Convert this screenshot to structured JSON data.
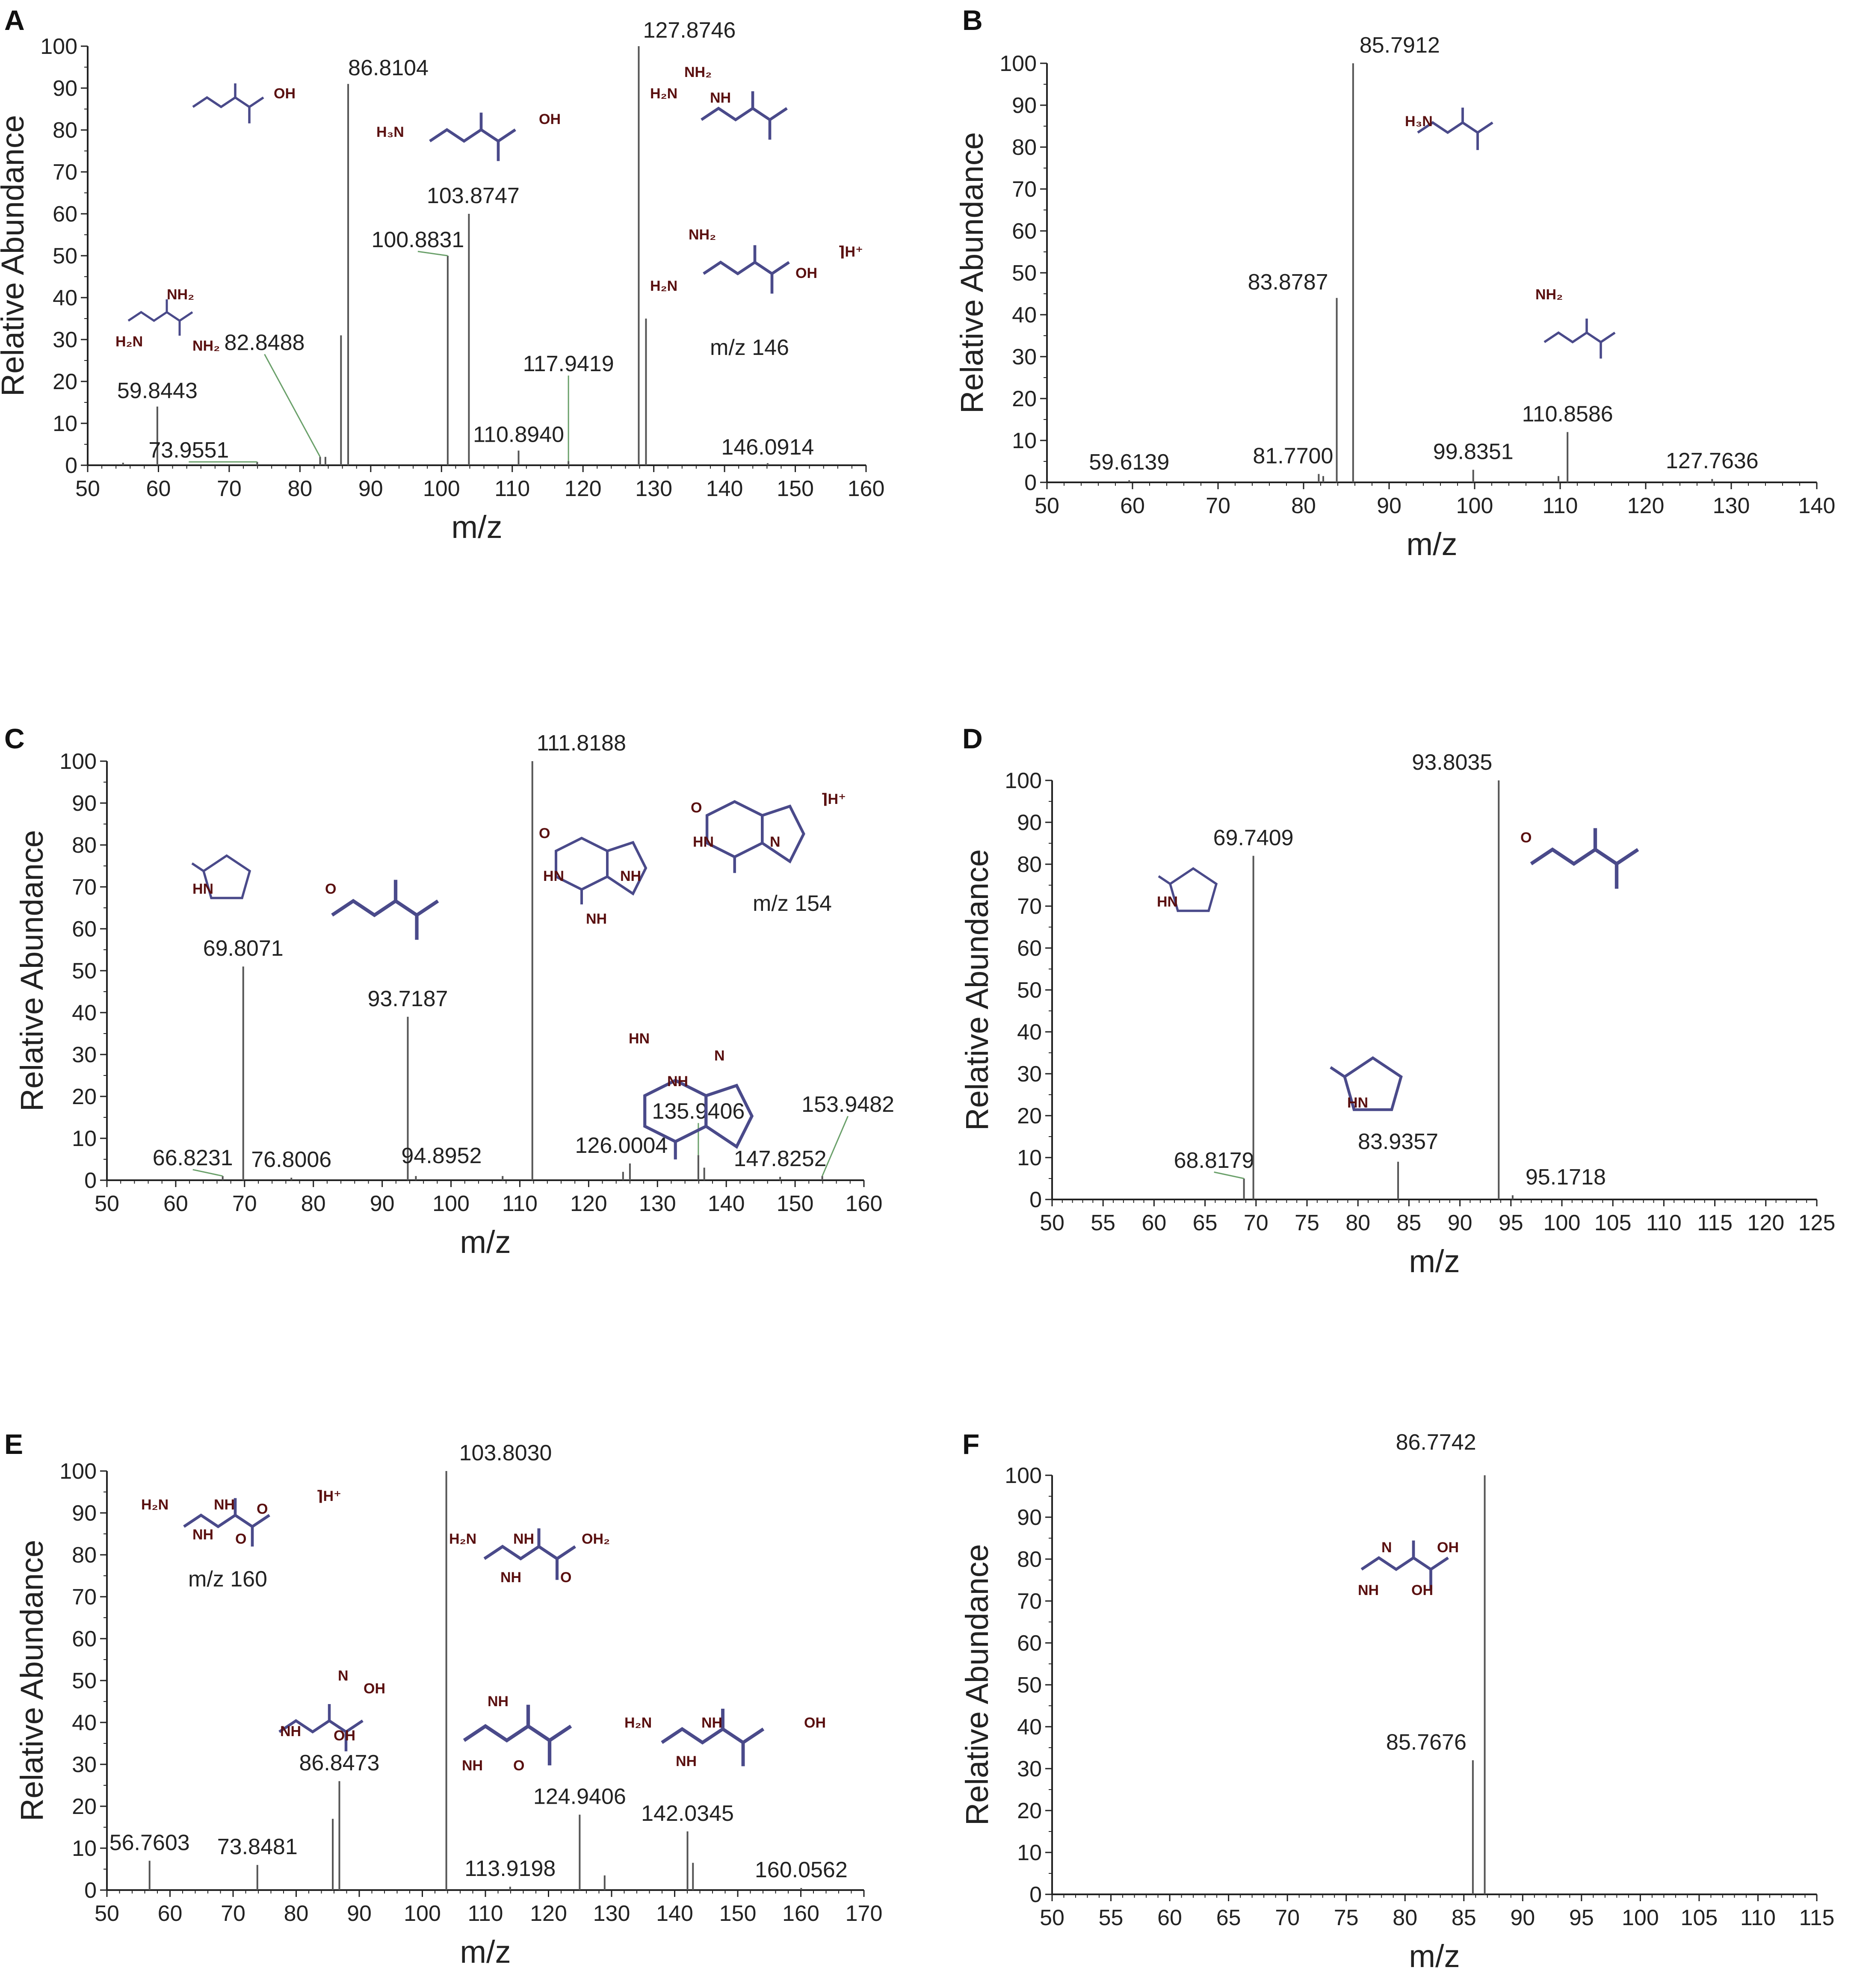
{
  "figure": {
    "ylabel": "Relative Abundance",
    "xlabel": "m/z",
    "accent_colors": {
      "axis": "#222222",
      "bar": "#555555",
      "structure_bond": "#4a4a8a",
      "structure_atom": "#5a1010",
      "leader": "#6aa06a"
    }
  },
  "chart_data": [
    {
      "panel": "A",
      "type": "bar",
      "xlabel": "m/z",
      "ylabel": "Relative Abundance",
      "xlim": [
        50,
        160
      ],
      "ylim": [
        0,
        100
      ],
      "xticks": [
        50,
        60,
        70,
        80,
        90,
        100,
        110,
        120,
        130,
        140,
        150,
        160
      ],
      "yticks": [
        0,
        10,
        20,
        30,
        40,
        50,
        60,
        70,
        80,
        90,
        100
      ],
      "peaks": [
        {
          "mz": 55.0,
          "intensity": 0.6
        },
        {
          "mz": 59.8443,
          "intensity": 14,
          "label": "59.8443"
        },
        {
          "mz": 73.9551,
          "intensity": 0.8,
          "label": "73.9551"
        },
        {
          "mz": 82.8488,
          "intensity": 2,
          "label": "82.8488"
        },
        {
          "mz": 83.6,
          "intensity": 2
        },
        {
          "mz": 85.8,
          "intensity": 31
        },
        {
          "mz": 86.8104,
          "intensity": 91,
          "label": "86.8104"
        },
        {
          "mz": 100.8831,
          "intensity": 50,
          "label": "100.8831"
        },
        {
          "mz": 103.8747,
          "intensity": 60,
          "label": "103.8747"
        },
        {
          "mz": 110.894,
          "intensity": 3.5,
          "label": "110.8940"
        },
        {
          "mz": 117.9419,
          "intensity": 1,
          "label": "117.9419"
        },
        {
          "mz": 127.8746,
          "intensity": 100,
          "label": "127.8746"
        },
        {
          "mz": 128.9,
          "intensity": 35
        },
        {
          "mz": 146.0914,
          "intensity": 0.5,
          "label": "146.0914"
        }
      ],
      "annotations": [
        "m/z 146"
      ]
    },
    {
      "panel": "B",
      "type": "bar",
      "xlabel": "m/z",
      "ylabel": "Relative Abundance",
      "xlim": [
        50,
        140
      ],
      "ylim": [
        0,
        100
      ],
      "xticks": [
        50,
        60,
        70,
        80,
        90,
        100,
        110,
        120,
        130,
        140
      ],
      "yticks": [
        0,
        10,
        20,
        30,
        40,
        50,
        60,
        70,
        80,
        90,
        100
      ],
      "peaks": [
        {
          "mz": 59.6139,
          "intensity": 0.5,
          "label": "59.6139"
        },
        {
          "mz": 81.77,
          "intensity": 2,
          "label": "81.7700"
        },
        {
          "mz": 82.3,
          "intensity": 1.5
        },
        {
          "mz": 83.8787,
          "intensity": 44,
          "label": "83.8787"
        },
        {
          "mz": 85.7912,
          "intensity": 100,
          "label": "85.7912"
        },
        {
          "mz": 99.8351,
          "intensity": 3,
          "label": "99.8351"
        },
        {
          "mz": 109.8,
          "intensity": 1.5
        },
        {
          "mz": 110.8586,
          "intensity": 12,
          "label": "110.8586"
        },
        {
          "mz": 127.7636,
          "intensity": 0.8,
          "label": "127.7636"
        }
      ],
      "annotations": []
    },
    {
      "panel": "C",
      "type": "bar",
      "xlabel": "m/z",
      "ylabel": "Relative Abundance",
      "xlim": [
        50,
        160
      ],
      "ylim": [
        0,
        100
      ],
      "xticks": [
        50,
        60,
        70,
        80,
        90,
        100,
        110,
        120,
        130,
        140,
        150,
        160
      ],
      "yticks": [
        0,
        10,
        20,
        30,
        40,
        50,
        60,
        70,
        80,
        90,
        100
      ],
      "peaks": [
        {
          "mz": 66.8231,
          "intensity": 1,
          "label": "66.8231"
        },
        {
          "mz": 69.8071,
          "intensity": 51,
          "label": "69.8071"
        },
        {
          "mz": 76.8006,
          "intensity": 0.6,
          "label": "76.8006"
        },
        {
          "mz": 93.7187,
          "intensity": 39,
          "label": "93.7187"
        },
        {
          "mz": 94.8952,
          "intensity": 1,
          "label": "94.8952"
        },
        {
          "mz": 107.5,
          "intensity": 1
        },
        {
          "mz": 111.8188,
          "intensity": 100,
          "label": "111.8188"
        },
        {
          "mz": 125.0,
          "intensity": 2
        },
        {
          "mz": 126.0004,
          "intensity": 4,
          "label": "126.0004"
        },
        {
          "mz": 135.9406,
          "intensity": 6,
          "label": "135.9406"
        },
        {
          "mz": 136.8,
          "intensity": 3
        },
        {
          "mz": 147.8252,
          "intensity": 0.8,
          "label": "147.8252"
        },
        {
          "mz": 153.9482,
          "intensity": 1,
          "label": "153.9482"
        }
      ],
      "annotations": [
        "m/z 154"
      ]
    },
    {
      "panel": "D",
      "type": "bar",
      "xlabel": "m/z",
      "ylabel": "Relative Abundance",
      "xlim": [
        50,
        125
      ],
      "ylim": [
        0,
        100
      ],
      "xticks": [
        50,
        55,
        60,
        65,
        70,
        75,
        80,
        85,
        90,
        95,
        100,
        105,
        110,
        115,
        120,
        125
      ],
      "yticks": [
        0,
        10,
        20,
        30,
        40,
        50,
        60,
        70,
        80,
        90,
        100
      ],
      "peaks": [
        {
          "mz": 68.8179,
          "intensity": 5,
          "label": "68.8179"
        },
        {
          "mz": 69.7409,
          "intensity": 82,
          "label": "69.7409"
        },
        {
          "mz": 83.9357,
          "intensity": 9,
          "label": "83.9357"
        },
        {
          "mz": 93.8035,
          "intensity": 100,
          "label": "93.8035"
        },
        {
          "mz": 95.1718,
          "intensity": 1,
          "label": "95.1718"
        }
      ],
      "annotations": []
    },
    {
      "panel": "E",
      "type": "bar",
      "xlabel": "m/z",
      "ylabel": "Relative Abundance",
      "xlim": [
        50,
        170
      ],
      "ylim": [
        0,
        100
      ],
      "xticks": [
        50,
        60,
        70,
        80,
        90,
        100,
        110,
        120,
        130,
        140,
        150,
        160,
        170
      ],
      "yticks": [
        0,
        10,
        20,
        30,
        40,
        50,
        60,
        70,
        80,
        90,
        100
      ],
      "peaks": [
        {
          "mz": 56.7603,
          "intensity": 7,
          "label": "56.7603"
        },
        {
          "mz": 73.8481,
          "intensity": 6,
          "label": "73.8481"
        },
        {
          "mz": 85.8,
          "intensity": 17
        },
        {
          "mz": 86.8473,
          "intensity": 26,
          "label": "86.8473"
        },
        {
          "mz": 103.803,
          "intensity": 100,
          "label": "103.8030"
        },
        {
          "mz": 113.9198,
          "intensity": 0.8,
          "label": "113.9198"
        },
        {
          "mz": 124.9406,
          "intensity": 18,
          "label": "124.9406"
        },
        {
          "mz": 128.9,
          "intensity": 3.5
        },
        {
          "mz": 142.0345,
          "intensity": 14,
          "label": "142.0345"
        },
        {
          "mz": 142.9,
          "intensity": 6.5
        },
        {
          "mz": 160.0562,
          "intensity": 0.5,
          "label": "160.0562"
        }
      ],
      "annotations": [
        "m/z 160"
      ]
    },
    {
      "panel": "F",
      "type": "bar",
      "xlabel": "m/z",
      "ylabel": "Relative Abundance",
      "xlim": [
        50,
        115
      ],
      "ylim": [
        0,
        100
      ],
      "xticks": [
        50,
        55,
        60,
        65,
        70,
        75,
        80,
        85,
        90,
        95,
        100,
        105,
        110,
        115
      ],
      "yticks": [
        0,
        10,
        20,
        30,
        40,
        50,
        60,
        70,
        80,
        90,
        100
      ],
      "peaks": [
        {
          "mz": 85.7676,
          "intensity": 32,
          "label": "85.7676"
        },
        {
          "mz": 86.7742,
          "intensity": 100,
          "label": "86.7742"
        }
      ],
      "annotations": []
    }
  ]
}
